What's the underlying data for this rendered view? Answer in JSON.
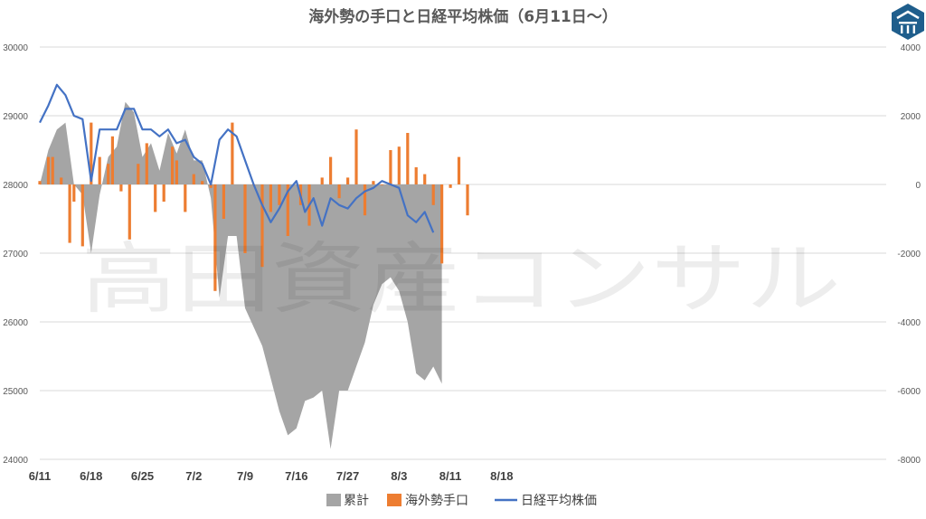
{
  "chart_data": {
    "type": "bar",
    "title": "海外勢の手口と日経平均株価（6月11日〜）",
    "watermark": "高田資産コンサル",
    "x_ticks": [
      "6/11",
      "6/18",
      "6/25",
      "7/2",
      "7/9",
      "7/16",
      "7/27",
      "8/3",
      "8/11",
      "8/18"
    ],
    "y_left": {
      "min": 24000,
      "max": 30000,
      "step": 1000,
      "ticks": [
        "24000",
        "25000",
        "26000",
        "27000",
        "28000",
        "29000",
        "30000"
      ]
    },
    "y_right": {
      "min": -8000,
      "max": 4000,
      "step": 2000,
      "ticks": [
        "-8000",
        "-6000",
        "-4000",
        "-2000",
        "0",
        "2000",
        "4000"
      ]
    },
    "grid": "horizontal",
    "legend_position": "bottom",
    "colors": {
      "cumulative": "#a5a5a5",
      "flow": "#ed7d31",
      "nikkei": "#4472c4"
    },
    "series": [
      {
        "name": "累計",
        "type": "area",
        "axis": "right",
        "values": [
          0,
          1000,
          1600,
          1800,
          0,
          -300,
          -2000,
          -300,
          800,
          1100,
          2400,
          2100,
          800,
          1200,
          400,
          1500,
          900,
          1600,
          700,
          700,
          -400,
          -3300,
          -1500,
          -1500,
          -3600,
          -4700,
          -6600,
          -7300,
          -7100,
          -6300,
          -6200,
          -6000,
          -7700,
          -6000,
          -6000,
          -5300,
          -4600,
          -3500,
          -2900,
          -2700,
          -3100,
          -4000,
          -5500,
          -5700,
          -5300,
          -5800
        ],
        "x": [
          0,
          2,
          4,
          6,
          8,
          10,
          12,
          14,
          16,
          18,
          20,
          22,
          24,
          26,
          28,
          30,
          32,
          34,
          36,
          38,
          40,
          42,
          44,
          46,
          48,
          52,
          56,
          58,
          60,
          62,
          64,
          66,
          68,
          70,
          72,
          74,
          76,
          78,
          80,
          82,
          84,
          86,
          88,
          90,
          92,
          94
        ]
      },
      {
        "name": "海外勢手口",
        "type": "bar",
        "axis": "right",
        "values": [
          100,
          800,
          800,
          200,
          -1700,
          -500,
          -1800,
          1800,
          800,
          600,
          1400,
          -200,
          -1600,
          600,
          1200,
          -800,
          -500,
          1100,
          700,
          -800,
          300,
          100,
          -100,
          -3100,
          -1000,
          1800,
          -2000,
          0,
          -2400,
          -800,
          -600,
          -1500,
          -600,
          -1200,
          200,
          800,
          -400,
          200,
          1600,
          -900,
          100,
          0,
          1000,
          1100,
          1500,
          500,
          300,
          -600,
          -2300,
          -100,
          800,
          -900
        ],
        "x": [
          0,
          2,
          3,
          5,
          7,
          8,
          10,
          12,
          14,
          16,
          17,
          19,
          21,
          23,
          25,
          27,
          29,
          31,
          32,
          34,
          36,
          38,
          40,
          41,
          43,
          45,
          48,
          50,
          52,
          54,
          56,
          58,
          61,
          63,
          66,
          68,
          70,
          72,
          74,
          76,
          78,
          80,
          82,
          84,
          86,
          88,
          90,
          92,
          94,
          96,
          98,
          100
        ]
      },
      {
        "name": "日経平均株価",
        "type": "line",
        "axis": "left",
        "values": [
          28900,
          29150,
          29450,
          29300,
          29000,
          28950,
          28050,
          28800,
          28800,
          28800,
          29100,
          29100,
          28800,
          28800,
          28700,
          28800,
          28600,
          28650,
          28400,
          28300,
          28000,
          28650,
          28800,
          28700,
          28350,
          28000,
          27700,
          27450,
          27650,
          27900,
          28050,
          27600,
          27800,
          27400,
          27800,
          27700,
          27650,
          27800,
          27900,
          27950,
          28050,
          28000,
          27950,
          27550,
          27450,
          27600,
          27300
        ],
        "x": [
          0,
          2,
          4,
          6,
          8,
          10,
          12,
          14,
          16,
          18,
          20,
          22,
          24,
          26,
          28,
          30,
          32,
          34,
          36,
          38,
          40,
          42,
          44,
          46,
          48,
          50,
          52,
          54,
          56,
          58,
          60,
          62,
          64,
          66,
          68,
          70,
          72,
          74,
          76,
          78,
          80,
          82,
          84,
          86,
          88,
          90,
          92
        ]
      }
    ]
  }
}
